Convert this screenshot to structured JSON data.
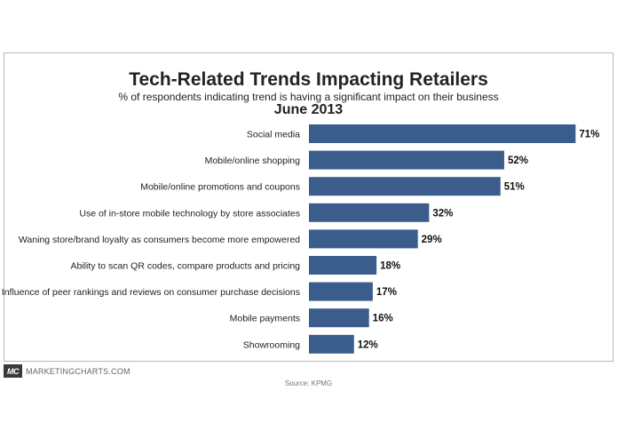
{
  "chart_data": {
    "type": "bar",
    "orientation": "horizontal",
    "title": "Tech-Related Trends Impacting Retailers",
    "subtitle": "% of respondents indicating trend is having a significant impact on their business",
    "period": "June 2013",
    "categories": [
      "Social media",
      "Mobile/online shopping",
      "Mobile/online promotions and coupons",
      "Use of in-store mobile technology by store associates",
      "Waning store/brand loyalty as consumers become more empowered",
      "Ability to scan QR codes, compare products and pricing",
      "Influence of peer rankings and reviews on consumer purchase decisions",
      "Mobile payments",
      "Showrooming"
    ],
    "values": [
      71,
      52,
      51,
      32,
      29,
      18,
      17,
      16,
      12
    ],
    "value_labels": [
      "71%",
      "52%",
      "51%",
      "32%",
      "29%",
      "18%",
      "17%",
      "16%",
      "12%"
    ],
    "bar_color": "#3a5d8c",
    "grid": false,
    "legend": "none"
  },
  "branding": {
    "logo_text": "MC",
    "site": "MARKETINGCHARTS.COM"
  },
  "source": "Source: KPMG"
}
